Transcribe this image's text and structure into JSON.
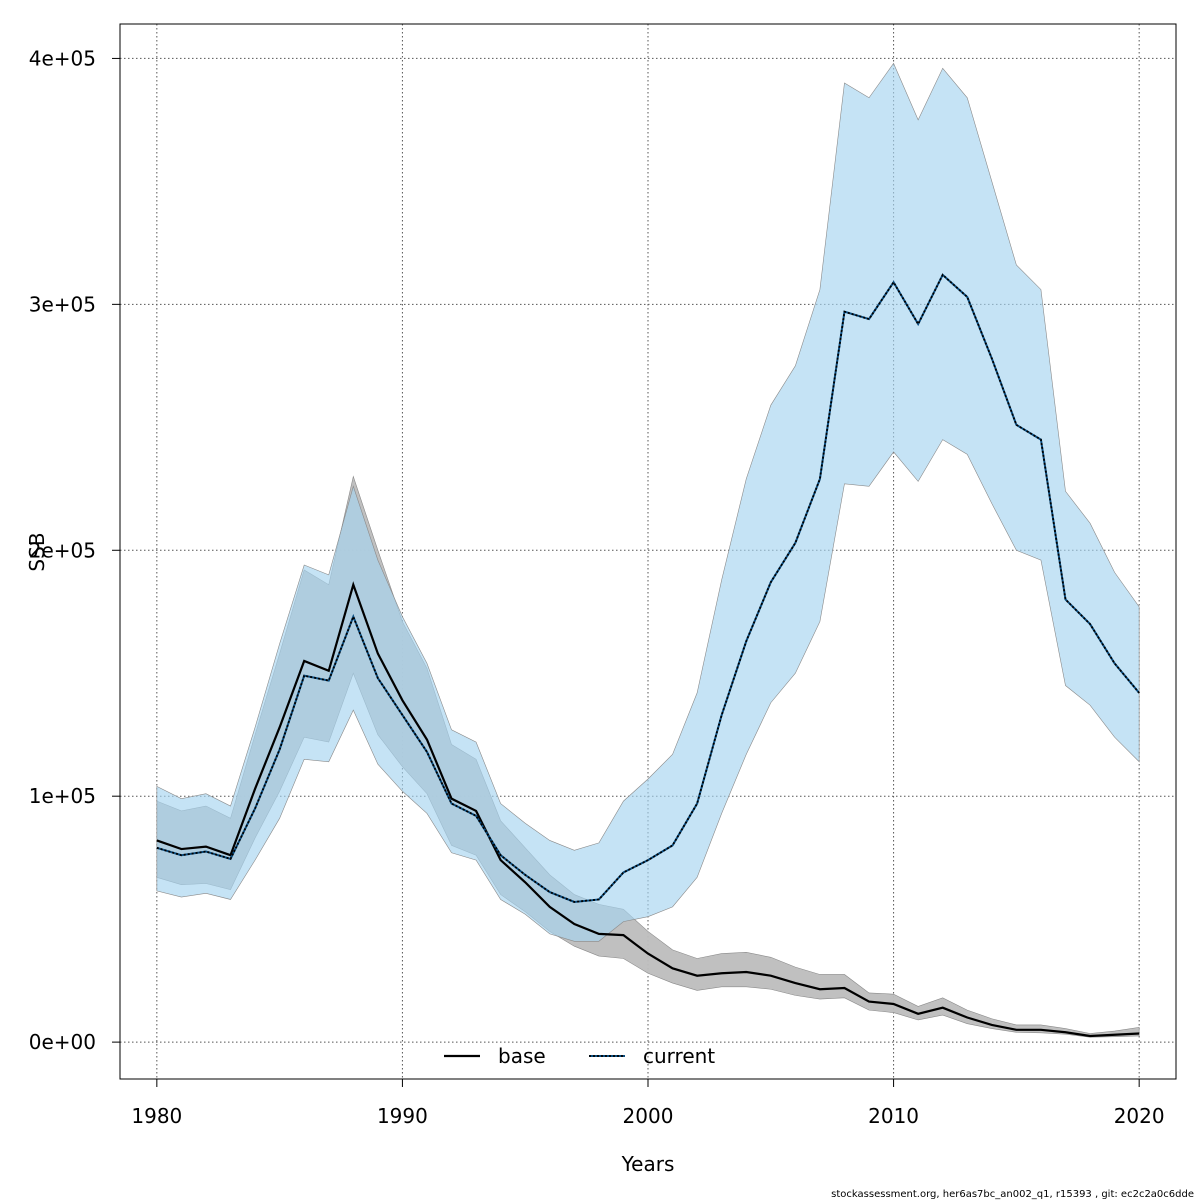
{
  "chart_data": {
    "type": "line",
    "xlabel": "Years",
    "ylabel": "SSB",
    "xlim": [
      1978.5,
      2021.5
    ],
    "ylim": [
      -15000,
      414000
    ],
    "x_ticks": [
      1980,
      1990,
      2000,
      2010,
      2020
    ],
    "y_ticks": [
      0,
      100000,
      200000,
      300000,
      400000
    ],
    "y_tick_labels": [
      "0e+00",
      "1e+05",
      "2e+05",
      "3e+05",
      "4e+05"
    ],
    "grid": true,
    "legend_position": "bottom",
    "x": [
      1980,
      1981,
      1982,
      1983,
      1984,
      1985,
      1986,
      1987,
      1988,
      1989,
      1990,
      1991,
      1992,
      1993,
      1994,
      1995,
      1996,
      1997,
      1998,
      1999,
      2000,
      2001,
      2002,
      2003,
      2004,
      2005,
      2006,
      2007,
      2008,
      2009,
      2010,
      2011,
      2012,
      2013,
      2014,
      2015,
      2016,
      2017,
      2018,
      2019,
      2020
    ],
    "series": [
      {
        "name": "base",
        "line_color": "#000000",
        "band_color": "#bdbdbd",
        "values": [
          82000,
          78500,
          79500,
          76000,
          103000,
          128000,
          155000,
          151000,
          186000,
          158000,
          139000,
          123000,
          99000,
          94000,
          74000,
          65000,
          55000,
          48000,
          44000,
          43500,
          36000,
          30000,
          27000,
          28000,
          28500,
          27000,
          24000,
          21500,
          22000,
          16500,
          15500,
          11500,
          14000,
          10000,
          7000,
          5000,
          5000,
          4000,
          2500,
          3000,
          3500
        ],
        "lower": [
          67000,
          64000,
          64500,
          62000,
          83000,
          102000,
          124000,
          122000,
          150000,
          125000,
          112000,
          101000,
          80000,
          76000,
          60000,
          53000,
          45000,
          39000,
          35000,
          34000,
          28000,
          24000,
          21000,
          22500,
          22500,
          21500,
          19000,
          17500,
          18000,
          13000,
          12000,
          9000,
          11000,
          7500,
          5500,
          4000,
          3800,
          3200,
          2000,
          2200,
          2500
        ],
        "upper": [
          98000,
          94000,
          96000,
          91000,
          125000,
          158000,
          192000,
          186000,
          230000,
          200000,
          171000,
          152000,
          121000,
          115000,
          90000,
          79000,
          68000,
          60000,
          56000,
          54000,
          45000,
          37500,
          34000,
          36000,
          36500,
          34500,
          30500,
          27500,
          27500,
          20000,
          19500,
          14500,
          18000,
          13000,
          9500,
          7000,
          7000,
          5500,
          3500,
          4500,
          6000
        ]
      },
      {
        "name": "current",
        "line_color": "#0a4d80",
        "band_color": "#a6d4ef",
        "values": [
          79000,
          76000,
          77500,
          74500,
          95000,
          119000,
          149000,
          147000,
          173000,
          148000,
          133000,
          118000,
          97000,
          92000,
          76000,
          68000,
          61000,
          57000,
          58000,
          69000,
          74000,
          80000,
          97000,
          133000,
          163000,
          187000,
          203000,
          229000,
          297000,
          294000,
          309000,
          292000,
          312000,
          303000,
          278000,
          251000,
          245000,
          180000,
          170000,
          154000,
          142000
        ],
        "lower": [
          61500,
          59000,
          60500,
          58000,
          74000,
          91000,
          115000,
          114000,
          135000,
          113000,
          102000,
          93000,
          77000,
          74000,
          58000,
          52000,
          44000,
          41000,
          41000,
          49000,
          51000,
          55000,
          67000,
          93000,
          117000,
          138000,
          150000,
          171000,
          227000,
          226000,
          240000,
          228000,
          245000,
          239000,
          219000,
          200000,
          196000,
          145000,
          137000,
          124000,
          114000
        ],
        "upper": [
          104000,
          99000,
          101000,
          96000,
          128000,
          162000,
          194000,
          190000,
          226000,
          196000,
          173000,
          154000,
          127000,
          122000,
          97000,
          89000,
          82000,
          78000,
          81000,
          98000,
          107000,
          117000,
          142000,
          188000,
          229000,
          259000,
          275000,
          306000,
          390000,
          384000,
          398000,
          375000,
          396000,
          384000,
          350000,
          316000,
          306000,
          224000,
          211000,
          191000,
          177000
        ]
      }
    ]
  },
  "footnote": "stockassessment.org, her6as7bc_an002_q1, r15393 , git: ec2c2a0c6dde"
}
